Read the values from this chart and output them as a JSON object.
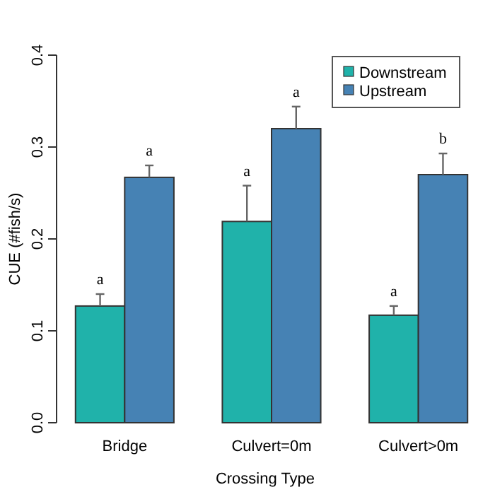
{
  "chart_data": {
    "type": "bar",
    "xlabel": "Crossing Type",
    "ylabel": "CUE (#fish/s)",
    "categories": [
      "Bridge",
      "Culvert=0m",
      "Culvert>0m"
    ],
    "series": [
      {
        "name": "Downstream",
        "color": "#20b2aa",
        "values": [
          0.127,
          0.219,
          0.117
        ],
        "errors": [
          [
            0.127,
            0.14
          ],
          [
            0.219,
            0.258
          ],
          [
            0.117,
            0.127
          ]
        ],
        "value_labels": [
          "a",
          "a",
          "a"
        ]
      },
      {
        "name": "Upstream",
        "color": "#4682b4",
        "values": [
          0.267,
          0.32,
          0.27
        ],
        "errors": [
          [
            0.267,
            0.28
          ],
          [
            0.32,
            0.344
          ],
          [
            0.27,
            0.293
          ]
        ],
        "value_labels": [
          "a",
          "a",
          "b"
        ]
      }
    ],
    "ylim": [
      0,
      0.4
    ],
    "yticks": [
      {
        "value": 0,
        "label": "0.0"
      },
      0.1,
      0.2,
      0.3,
      0.4
    ],
    "grid": false,
    "legend": "top right"
  }
}
